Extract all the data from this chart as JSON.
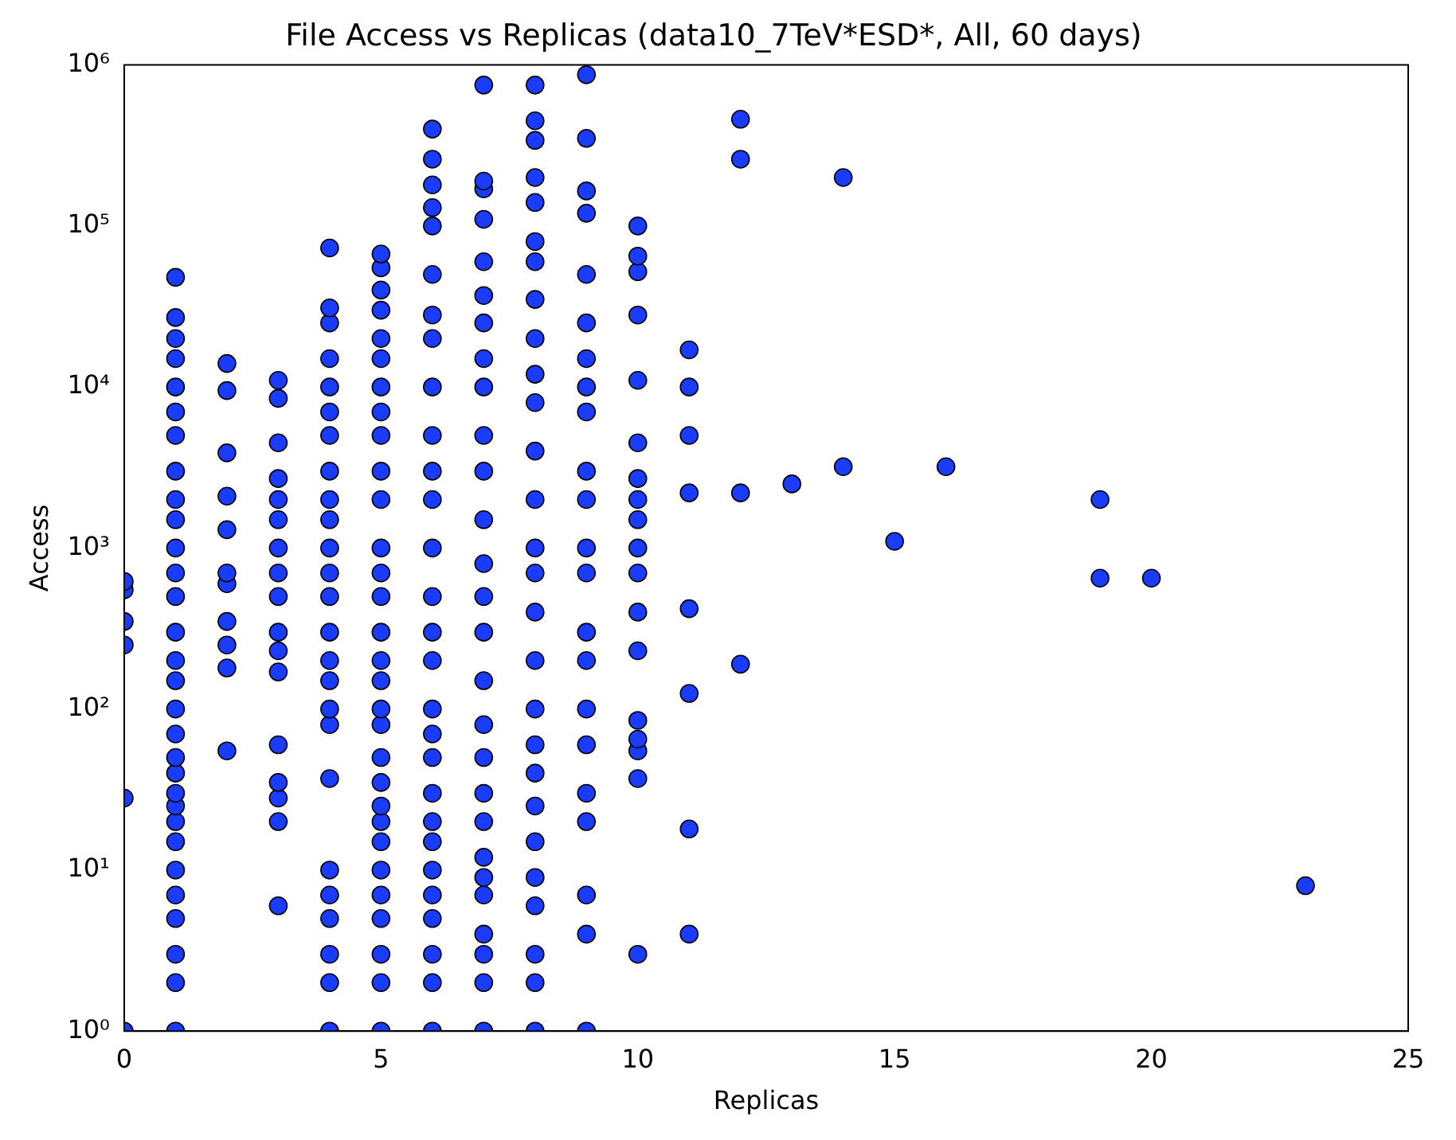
{
  "chart_data": {
    "type": "scatter",
    "title": "File Access vs Replicas (data10_7TeV*ESD*, All, 60 days)",
    "xlabel": "Replicas",
    "ylabel": "Access",
    "log": "y",
    "grid": false,
    "marker": "circle",
    "xlim": [
      0,
      25
    ],
    "xticks": [
      0,
      5,
      10,
      15,
      20,
      25
    ],
    "ylim": [
      1,
      1000000
    ],
    "yticks": [
      {
        "value": 1,
        "label": "10⁰"
      },
      {
        "value": 10,
        "label": "10¹"
      },
      {
        "value": 100,
        "label": "10²"
      },
      {
        "value": 1000,
        "label": "10³"
      },
      {
        "value": 10000,
        "label": "10⁴"
      },
      {
        "value": 100000,
        "label": "10⁵"
      },
      {
        "value": 1000000,
        "label": "10⁶"
      }
    ],
    "series": [
      {
        "color": "#1a3cff",
        "x": [
          0,
          0,
          0,
          0,
          0,
          0
        ],
        "values": [
          1,
          28,
          250,
          350,
          550,
          620
        ]
      },
      {
        "color": "#1a3cff",
        "x": [
          1,
          1,
          1,
          1,
          1,
          1,
          1,
          1,
          1,
          1,
          1,
          1,
          1,
          1,
          1,
          1,
          1,
          1,
          1,
          1,
          1,
          1,
          1,
          1,
          1,
          1,
          1,
          1,
          1,
          1
        ],
        "values": [
          1,
          2,
          3,
          5,
          7,
          10,
          15,
          20,
          25,
          30,
          40,
          50,
          70,
          100,
          150,
          200,
          300,
          500,
          700,
          1000,
          1500,
          2000,
          3000,
          5000,
          7000,
          10000,
          15000,
          20000,
          27000,
          48000
        ]
      },
      {
        "color": "#1a3cff",
        "x": [
          2,
          2,
          2,
          2,
          2,
          2,
          2,
          2,
          2,
          2,
          2
        ],
        "values": [
          55,
          180,
          250,
          350,
          600,
          700,
          1300,
          2100,
          3900,
          9500,
          14000
        ]
      },
      {
        "color": "#1a3cff",
        "x": [
          3,
          3,
          3,
          3,
          3,
          3,
          3,
          3,
          3,
          3,
          3,
          3,
          3,
          3,
          3,
          3,
          3
        ],
        "values": [
          6,
          20,
          28,
          35,
          60,
          170,
          230,
          300,
          500,
          700,
          1000,
          1500,
          2000,
          2700,
          4500,
          8500,
          11000
        ]
      },
      {
        "color": "#1a3cff",
        "x": [
          4,
          4,
          4,
          4,
          4,
          4,
          4,
          4,
          4,
          4,
          4,
          4,
          4,
          4,
          4,
          4,
          4,
          4,
          4,
          4,
          4,
          4,
          4,
          4,
          4
        ],
        "values": [
          1,
          2,
          3,
          5,
          7,
          10,
          37,
          80,
          100,
          150,
          200,
          300,
          500,
          700,
          1000,
          1500,
          2000,
          3000,
          5000,
          7000,
          10000,
          15000,
          25000,
          31000,
          73000
        ]
      },
      {
        "color": "#1a3cff",
        "x": [
          5,
          5,
          5,
          5,
          5,
          5,
          5,
          5,
          5,
          5,
          5,
          5,
          5,
          5,
          5,
          5,
          5,
          5,
          5,
          5,
          5,
          5,
          5,
          5,
          5,
          5,
          5,
          5,
          5,
          5
        ],
        "values": [
          1,
          2,
          3,
          5,
          7,
          10,
          15,
          20,
          25,
          35,
          50,
          80,
          100,
          150,
          200,
          300,
          500,
          700,
          1000,
          2000,
          3000,
          5000,
          7000,
          10000,
          15000,
          20000,
          30000,
          40000,
          55000,
          67000
        ]
      },
      {
        "color": "#1a3cff",
        "x": [
          6,
          6,
          6,
          6,
          6,
          6,
          6,
          6,
          6,
          6,
          6,
          6,
          6,
          6,
          6,
          6,
          6,
          6,
          6,
          6,
          6,
          6,
          6,
          6,
          6,
          6,
          6,
          6
        ],
        "values": [
          1,
          2,
          3,
          5,
          7,
          10,
          15,
          20,
          30,
          50,
          70,
          100,
          200,
          300,
          500,
          1000,
          2000,
          3000,
          5000,
          10000,
          20000,
          28000,
          50000,
          100000,
          130000,
          180000,
          260000,
          400000
        ]
      },
      {
        "color": "#1a3cff",
        "x": [
          7,
          7,
          7,
          7,
          7,
          7,
          7,
          7,
          7,
          7,
          7,
          7,
          7,
          7,
          7,
          7,
          7,
          7,
          7,
          7,
          7,
          7,
          7,
          7,
          7,
          7,
          7
        ],
        "values": [
          1,
          2,
          3,
          4,
          7,
          9,
          12,
          20,
          30,
          50,
          80,
          150,
          300,
          500,
          800,
          1500,
          3000,
          5000,
          10000,
          15000,
          25000,
          37000,
          60000,
          110000,
          170000,
          190000,
          750000
        ]
      },
      {
        "color": "#1a3cff",
        "x": [
          8,
          8,
          8,
          8,
          8,
          8,
          8,
          8,
          8,
          8,
          8,
          8,
          8,
          8,
          8,
          8,
          8,
          8,
          8,
          8,
          8,
          8,
          8,
          8,
          8,
          8,
          8
        ],
        "values": [
          1,
          2,
          3,
          6,
          9,
          15,
          25,
          40,
          60,
          100,
          200,
          400,
          700,
          1000,
          2000,
          4000,
          8000,
          12000,
          20000,
          35000,
          60000,
          80000,
          140000,
          200000,
          340000,
          450000,
          750000
        ]
      },
      {
        "color": "#1a3cff",
        "x": [
          9,
          9,
          9,
          9,
          9,
          9,
          9,
          9,
          9,
          9,
          9,
          9,
          9,
          9,
          9,
          9,
          9,
          9,
          9,
          9,
          9,
          9
        ],
        "values": [
          1,
          4,
          7,
          20,
          30,
          60,
          100,
          200,
          300,
          700,
          1000,
          2000,
          3000,
          7000,
          10000,
          15000,
          25000,
          50000,
          120000,
          165000,
          350000,
          870000
        ]
      },
      {
        "color": "#1a3cff",
        "x": [
          10,
          10,
          10,
          10,
          10,
          10,
          10,
          10,
          10,
          10,
          10,
          10,
          10,
          10,
          10,
          10,
          10,
          10
        ],
        "values": [
          3,
          37,
          55,
          65,
          85,
          230,
          400,
          700,
          1000,
          1500,
          2000,
          2700,
          4500,
          11000,
          28000,
          52000,
          65000,
          100000
        ]
      },
      {
        "color": "#1a3cff",
        "x": [
          11,
          11,
          11,
          11,
          11,
          11,
          11,
          11
        ],
        "values": [
          4,
          18,
          125,
          420,
          2200,
          5000,
          10000,
          17000
        ]
      },
      {
        "color": "#1a3cff",
        "x": [
          12,
          12,
          12,
          12
        ],
        "values": [
          190,
          2200,
          260000,
          460000
        ]
      },
      {
        "color": "#1a3cff",
        "x": [
          13,
          14,
          14,
          15,
          16,
          19,
          19,
          20,
          23
        ],
        "values": [
          2500,
          3200,
          200000,
          1100,
          3200,
          650,
          2000,
          650,
          8
        ]
      }
    ]
  }
}
